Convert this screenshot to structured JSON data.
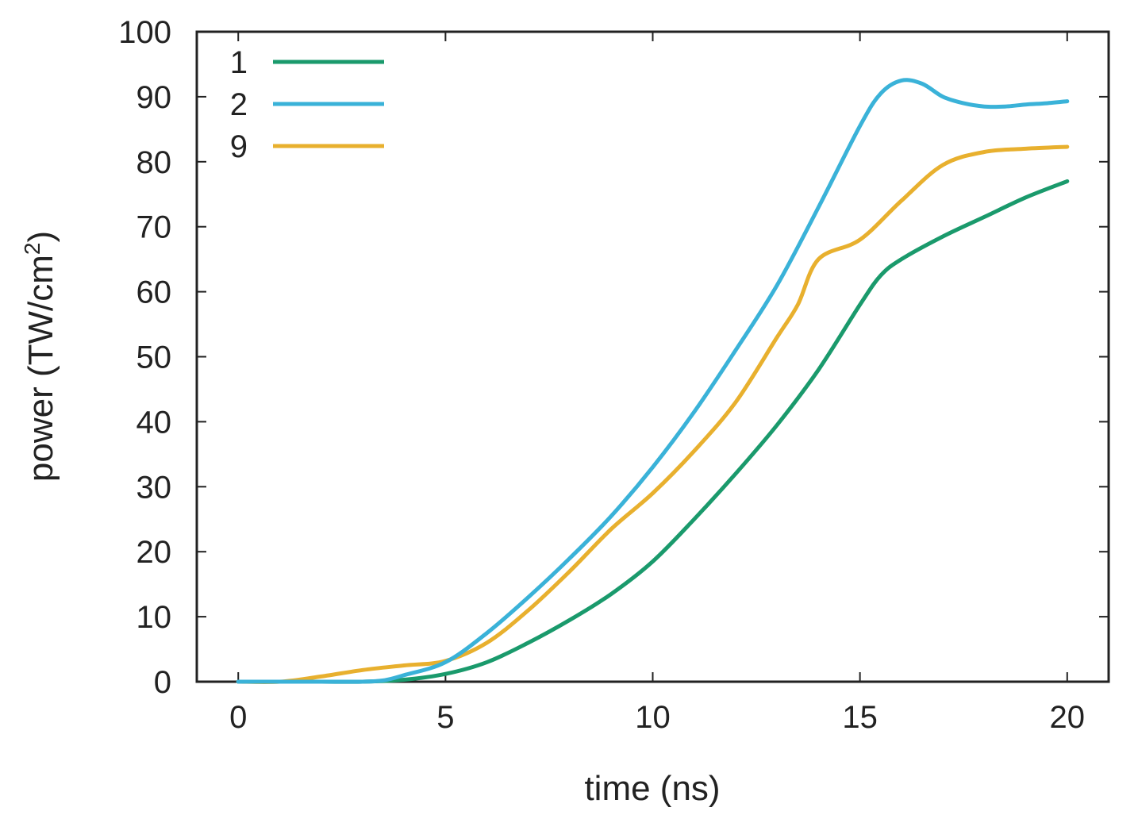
{
  "chart_data": {
    "type": "line",
    "title": "",
    "xlabel": "time (ns)",
    "ylabel_main": "power (TW/cm",
    "ylabel_sup": "2",
    "ylabel_end": ")",
    "xlim": [
      -1,
      21
    ],
    "ylim": [
      0,
      100
    ],
    "xticks": [
      0,
      5,
      10,
      15,
      20
    ],
    "yticks": [
      0,
      10,
      20,
      30,
      40,
      50,
      60,
      70,
      80,
      90,
      100
    ],
    "grid": false,
    "legend_position": "top-left",
    "series": [
      {
        "name": "1",
        "color": "#1a9a6c",
        "x": [
          0,
          1,
          2,
          3,
          4,
          5,
          6,
          7,
          8,
          9,
          10,
          11,
          12,
          13,
          14,
          15,
          15.5,
          16,
          17,
          18,
          19,
          20
        ],
        "y": [
          0,
          0,
          0,
          0,
          0.3,
          1.2,
          3,
          6,
          9.5,
          13.5,
          18.5,
          25,
          32,
          39.5,
          48,
          58,
          62.5,
          65,
          68.5,
          71.5,
          74.5,
          77
        ]
      },
      {
        "name": "2",
        "color": "#3ab2d8",
        "x": [
          0,
          1,
          2,
          3,
          3.5,
          4,
          5,
          6,
          7,
          8,
          9,
          10,
          11,
          12,
          13,
          14,
          15,
          15.5,
          16,
          16.5,
          17,
          17.5,
          18,
          18.5,
          19,
          19.5,
          20
        ],
        "y": [
          0,
          0,
          0,
          0,
          0.2,
          1,
          3,
          7.5,
          13,
          19,
          25.5,
          33,
          41.5,
          51,
          61,
          73,
          85.5,
          90.5,
          92.5,
          92,
          90,
          89,
          88.5,
          88.5,
          88.8,
          89,
          89.3
        ]
      },
      {
        "name": "9",
        "color": "#e8b02e",
        "x": [
          0,
          1,
          2,
          3,
          4,
          5,
          6,
          7,
          8,
          9,
          10,
          11,
          12,
          13,
          13.5,
          14,
          15,
          16,
          17,
          18,
          19,
          20
        ],
        "y": [
          0,
          0,
          0.8,
          1.8,
          2.5,
          3.2,
          6,
          11,
          17,
          23.5,
          29,
          35.5,
          43,
          53,
          58,
          65,
          68,
          74,
          79.5,
          81.5,
          82,
          82.3
        ]
      }
    ]
  }
}
